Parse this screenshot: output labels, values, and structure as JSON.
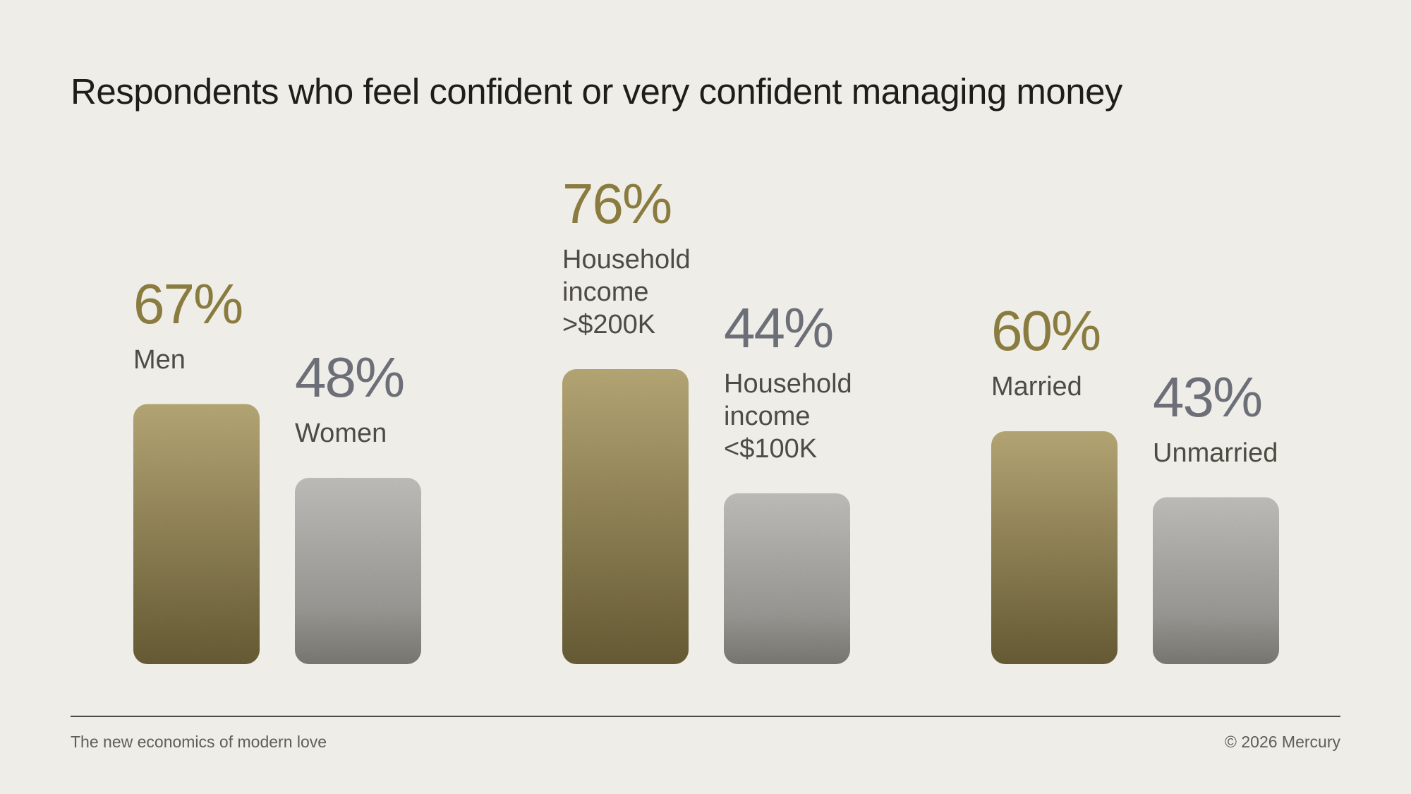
{
  "chart_data": {
    "type": "bar",
    "title": "Respondents who feel confident or very confident managing money",
    "unit": "%",
    "groups": [
      {
        "bars": [
          {
            "label": "Men",
            "value": 67,
            "display": "67%",
            "color": "gold"
          },
          {
            "label": "Women",
            "value": 48,
            "display": "48%",
            "color": "gray"
          }
        ]
      },
      {
        "bars": [
          {
            "label": "Household\nincome\n>$200K",
            "value": 76,
            "display": "76%",
            "color": "gold"
          },
          {
            "label": "Household\nincome\n<$100K",
            "value": 44,
            "display": "44%",
            "color": "gray"
          }
        ]
      },
      {
        "bars": [
          {
            "label": "Married",
            "value": 60,
            "display": "60%",
            "color": "gold"
          },
          {
            "label": "Unmarried",
            "value": 43,
            "display": "43%",
            "color": "gray"
          }
        ]
      }
    ],
    "colors": {
      "gold_text": "#8a7b3e",
      "gray_text": "#6c6f78",
      "gold_top": "#b9aa78",
      "gold_bottom": "#695d36",
      "gray_top": "#c2c1be",
      "gray_bottom": "#7b7a74"
    },
    "grid": false,
    "legend": "none"
  },
  "footer": {
    "left": "The new economics of modern love",
    "right": "© 2026 Mercury"
  }
}
